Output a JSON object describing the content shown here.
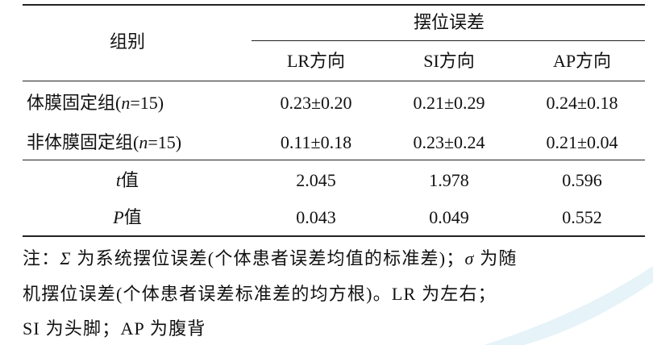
{
  "table": {
    "header": {
      "group": "组别",
      "span": "摆位误差",
      "columns": [
        "LR方向",
        "SI方向",
        "AP方向"
      ]
    },
    "rows": [
      {
        "label": [
          {
            "text": "体膜固定组("
          },
          {
            "text": "n",
            "italic": true
          },
          {
            "text": "=15)"
          }
        ],
        "cells": [
          "0.23±0.20",
          "0.21±0.29",
          "0.24±0.18"
        ]
      },
      {
        "label": [
          {
            "text": "非体膜固定组("
          },
          {
            "text": "n",
            "italic": true
          },
          {
            "text": "=15)"
          }
        ],
        "cells": [
          "0.11±0.18",
          "0.23±0.24",
          "0.21±0.04"
        ]
      },
      {
        "label": [
          {
            "text": "t",
            "italic": true
          },
          {
            "text": "值"
          }
        ],
        "cells": [
          "2.045",
          "1.978",
          "0.596"
        ]
      },
      {
        "label": [
          {
            "text": "P",
            "italic": true
          },
          {
            "text": "值"
          }
        ],
        "cells": [
          "0.043",
          "0.049",
          "0.552"
        ]
      }
    ]
  },
  "note": {
    "lines": [
      [
        {
          "text": "注："
        },
        {
          "text": "Σ",
          "italic": true
        },
        {
          "text": " 为系统摆位误差(个体患者误差均值的标准差)；"
        },
        {
          "text": "σ",
          "italic": true
        },
        {
          "text": " 为随"
        }
      ],
      [
        {
          "text": "机摆位误差(个体患者误差标准差的均方根)。LR 为左右；"
        }
      ],
      [
        {
          "text": "SI 为头脚；AP 为腹背"
        }
      ]
    ]
  }
}
